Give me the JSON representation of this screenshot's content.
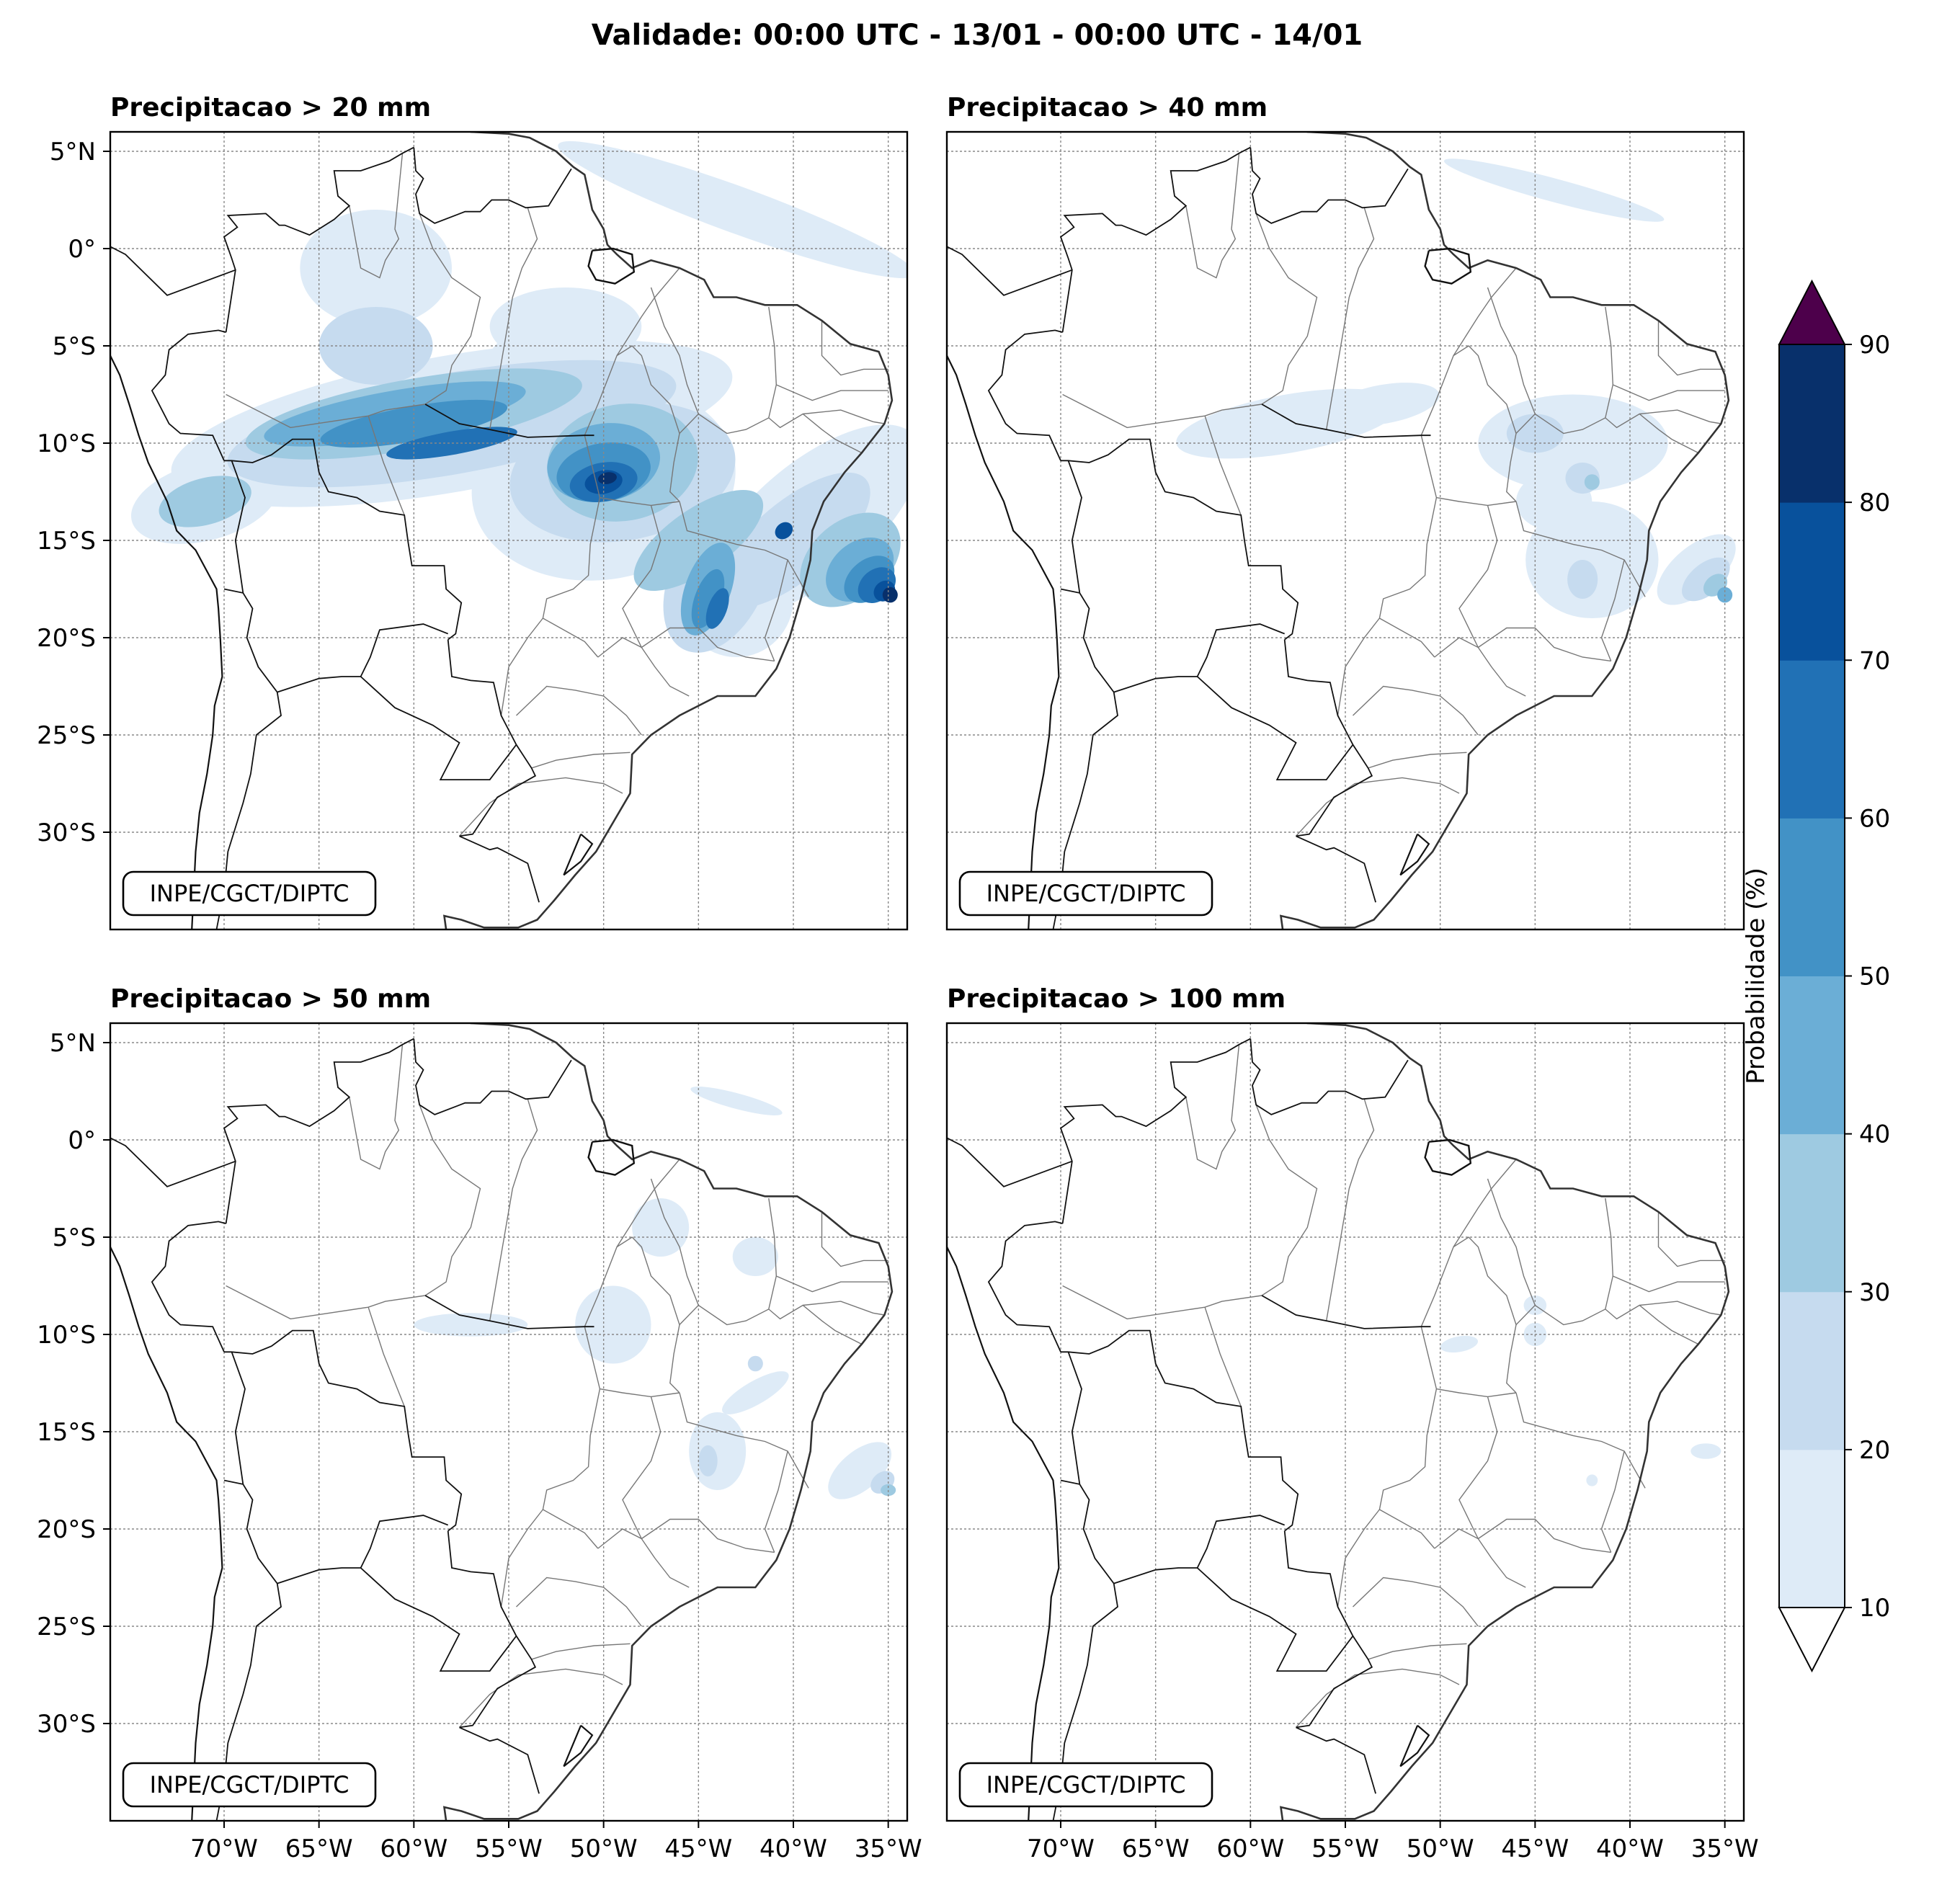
{
  "figure": {
    "title": "Validade: 00:00 UTC - 13/01 - 00:00 UTC - 14/01"
  },
  "panels": [
    {
      "title": "Precipitacao > 20 mm",
      "credit": "INPE/CGCT/DIPTC"
    },
    {
      "title": "Precipitacao > 40 mm",
      "credit": "INPE/CGCT/DIPTC"
    },
    {
      "title": "Precipitacao > 50 mm",
      "credit": "INPE/CGCT/DIPTC"
    },
    {
      "title": "Precipitacao > 100 mm",
      "credit": "INPE/CGCT/DIPTC"
    }
  ],
  "map": {
    "lon_range": [
      -76,
      -34
    ],
    "lat_range": [
      -35,
      6
    ],
    "lon_ticks": [
      -70,
      -65,
      -60,
      -55,
      -50,
      -45,
      -40,
      -35
    ],
    "lon_tick_labels": [
      "70°W",
      "65°W",
      "60°W",
      "55°W",
      "50°W",
      "45°W",
      "40°W",
      "35°W"
    ],
    "lat_ticks": [
      5,
      0,
      -5,
      -10,
      -15,
      -20,
      -25,
      -30
    ],
    "lat_tick_labels": [
      "5°N",
      "0°",
      "5°S",
      "10°S",
      "15°S",
      "20°S",
      "25°S",
      "30°S"
    ],
    "grid": true
  },
  "colorbar": {
    "label": "Probabilidade (%)",
    "levels": [
      10,
      20,
      30,
      40,
      50,
      60,
      70,
      80,
      90
    ],
    "tick_labels": [
      "10",
      "20",
      "30",
      "40",
      "50",
      "60",
      "70",
      "80",
      "90"
    ],
    "colors": [
      "#deebf7",
      "#c6dbef",
      "#9ecae1",
      "#6baed6",
      "#4292c6",
      "#2171b5",
      "#08519c",
      "#08306b"
    ],
    "over_color": "#4d004b",
    "under_color": "#ffffff",
    "extend": "both"
  }
}
